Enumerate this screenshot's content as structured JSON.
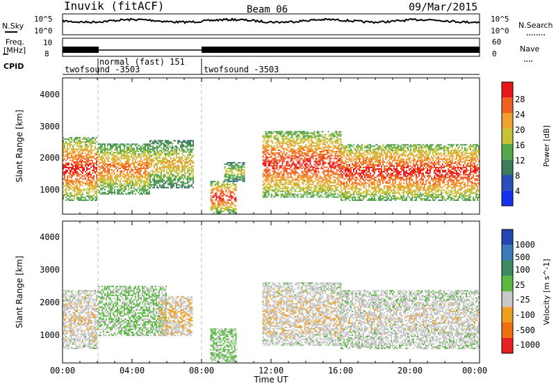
{
  "header": {
    "station": "Inuvik (fitACF)",
    "beam": "Beam 06",
    "date": "09/Mar/2015"
  },
  "top_panels": {
    "nsky_label": "N.Sky",
    "nsky_ticks": [
      "10^5",
      "10^0"
    ],
    "nsearch_label": "N.Search",
    "nsearch_ticks": [
      "10^5",
      "10^0"
    ],
    "freq_label_line1": "Freq.",
    "freq_label_line2": "[MHz]",
    "freq_ticks": [
      "10",
      "8"
    ],
    "nave_label": "Nave",
    "nave_ticks": [
      "60",
      "0"
    ],
    "cpid_label": "CPID",
    "cpid_segments": [
      {
        "label": "twofsound -3503",
        "start_hour": 0
      },
      {
        "label": "normal (fast) 151",
        "start_hour": 2
      },
      {
        "label": "twofsound -3503",
        "start_hour": 8
      }
    ]
  },
  "axes": {
    "ylabel": "Slant Range [km]",
    "yticks": [
      "1000",
      "2000",
      "3000",
      "4000"
    ],
    "xlabel": "Time UT",
    "xticks": [
      "00:00",
      "04:00",
      "08:00",
      "12:00",
      "16:00",
      "20:00",
      "00:00"
    ]
  },
  "power_colorbar": {
    "label": "Power [dB]",
    "ticks": [
      "4",
      "8",
      "12",
      "16",
      "20",
      "24",
      "28"
    ],
    "colors": [
      "#1533ee",
      "#2a4fb8",
      "#3c7d5a",
      "#55a84a",
      "#c8c23a",
      "#f0a030",
      "#f06020",
      "#e81818"
    ]
  },
  "velocity_colorbar": {
    "label": "Velocity [m s^-1]",
    "ticks": [
      "1000",
      "500",
      "100",
      "25",
      "-25",
      "-100",
      "-500",
      "-1000"
    ],
    "colors": [
      "#2048b0",
      "#3a7ab8",
      "#3d8a60",
      "#5aba40",
      "#c8c8c8",
      "#f0a020",
      "#f07010",
      "#e82020"
    ]
  },
  "chart_data": [
    {
      "type": "heatmap",
      "title": "Power",
      "xlabel": "Time UT",
      "ylabel": "Slant Range [km]",
      "xlim_hours": [
        0,
        24
      ],
      "ylim_km": [
        180,
        4500
      ],
      "colorbar": {
        "label": "Power [dB]",
        "range": [
          0,
          30
        ]
      },
      "echo_regions": [
        {
          "t_start": 0.0,
          "t_end": 2.0,
          "r_min": 600,
          "r_max": 2600,
          "peak_db": 28
        },
        {
          "t_start": 2.0,
          "t_end": 5.0,
          "r_min": 800,
          "r_max": 2400,
          "peak_db": 24
        },
        {
          "t_start": 5.0,
          "t_end": 7.5,
          "r_min": 1000,
          "r_max": 2500,
          "peak_db": 20
        },
        {
          "t_start": 8.5,
          "t_end": 10.0,
          "r_min": 200,
          "r_max": 1200,
          "peak_db": 28
        },
        {
          "t_start": 9.3,
          "t_end": 10.5,
          "r_min": 1200,
          "r_max": 1800,
          "peak_db": 18
        },
        {
          "t_start": 11.5,
          "t_end": 16.0,
          "r_min": 700,
          "r_max": 2800,
          "peak_db": 28
        },
        {
          "t_start": 16.0,
          "t_end": 24.0,
          "r_min": 600,
          "r_max": 2400,
          "peak_db": 28
        }
      ]
    },
    {
      "type": "heatmap",
      "title": "Velocity",
      "xlabel": "Time UT",
      "ylabel": "Slant Range [km]",
      "xlim_hours": [
        0,
        24
      ],
      "ylim_km": [
        180,
        4500
      ],
      "colorbar": {
        "label": "Velocity [m s^-1]",
        "range": [
          -1000,
          1000
        ]
      },
      "echo_regions": [
        {
          "t_start": 0.0,
          "t_end": 2.0,
          "r_min": 600,
          "r_max": 2400,
          "velocity": -200
        },
        {
          "t_start": 2.0,
          "t_end": 6.0,
          "r_min": 1000,
          "r_max": 2500,
          "velocity": 25
        },
        {
          "t_start": 5.5,
          "t_end": 7.5,
          "r_min": 1000,
          "r_max": 2200,
          "velocity": -300
        },
        {
          "t_start": 8.5,
          "t_end": 10.0,
          "r_min": 200,
          "r_max": 1200,
          "velocity": 80
        },
        {
          "t_start": 11.5,
          "t_end": 16.0,
          "r_min": 700,
          "r_max": 2600,
          "velocity": -200
        },
        {
          "t_start": 16.0,
          "t_end": 24.0,
          "r_min": 600,
          "r_max": 2400,
          "velocity": -150
        }
      ]
    }
  ]
}
